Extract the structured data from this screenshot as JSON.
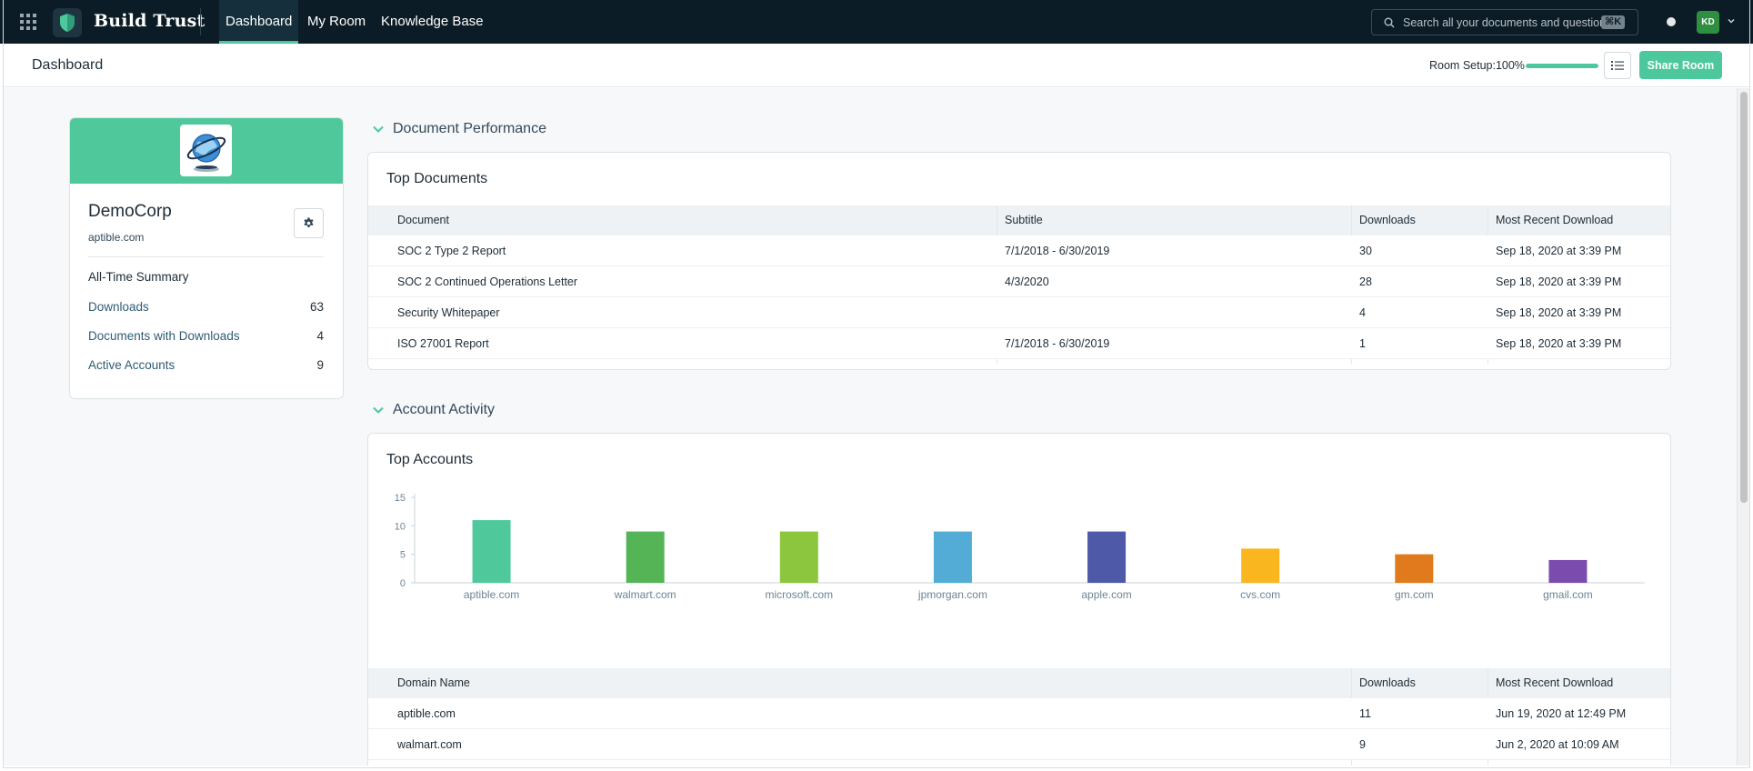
{
  "topnav": {
    "brand": "Build Trust",
    "tabs": [
      {
        "label": "Dashboard",
        "active": true
      },
      {
        "label": "My Room",
        "active": false
      },
      {
        "label": "Knowledge Base",
        "active": false
      }
    ],
    "search_placeholder": "Search all your documents and questions",
    "search_shortcut": "⌘K",
    "avatar_initials": "KD"
  },
  "subheader": {
    "title": "Dashboard",
    "room_setup_label": "Room Setup:100%",
    "room_setup_progress": 1.0,
    "share_button": "Share Room"
  },
  "company": {
    "name": "DemoCorp",
    "domain": "aptible.com",
    "summary_title": "All-Time Summary",
    "summary": [
      {
        "label": "Downloads",
        "value": "63"
      },
      {
        "label": "Documents with Downloads",
        "value": "4"
      },
      {
        "label": "Active Accounts",
        "value": "9"
      }
    ]
  },
  "document_performance": {
    "section_title": "Document Performance",
    "panel_title": "Top Documents",
    "columns": [
      "Document",
      "Subtitle",
      "Downloads",
      "Most Recent Download"
    ],
    "rows": [
      [
        "SOC 2 Type 2 Report",
        "7/1/2018 - 6/30/2019",
        "30",
        "Sep 18, 2020 at 3:39 PM"
      ],
      [
        "SOC 2 Continued Operations Letter",
        "4/3/2020",
        "28",
        "Sep 18, 2020 at 3:39 PM"
      ],
      [
        "Security Whitepaper",
        "",
        "4",
        "Sep 18, 2020 at 3:39 PM"
      ],
      [
        "ISO 27001 Report",
        "7/1/2018 - 6/30/2019",
        "1",
        "Sep 18, 2020 at 3:39 PM"
      ]
    ]
  },
  "account_activity": {
    "section_title": "Account Activity",
    "panel_title": "Top Accounts",
    "columns": [
      "Domain Name",
      "Downloads",
      "Most Recent Download"
    ],
    "rows": [
      [
        "aptible.com",
        "11",
        "Jun 19, 2020 at 12:49 PM"
      ],
      [
        "walmart.com",
        "9",
        "Jun 2, 2020 at 10:09 AM"
      ]
    ]
  },
  "chart_data": {
    "type": "bar",
    "title": "Top Accounts",
    "categories": [
      "aptible.com",
      "walmart.com",
      "microsoft.com",
      "jpmorgan.com",
      "apple.com",
      "cvs.com",
      "gm.com",
      "gmail.com"
    ],
    "values": [
      11,
      9,
      9,
      9,
      9,
      6,
      5,
      4
    ],
    "colors": [
      "#4fc99c",
      "#55b456",
      "#8cc63f",
      "#52acd5",
      "#4e5aa8",
      "#f9b61f",
      "#e07a1c",
      "#7b4cae"
    ],
    "ylim": [
      0,
      15
    ],
    "yticks": [
      0,
      5,
      10,
      15
    ],
    "grid": false,
    "legend": "none"
  },
  "colors": {
    "nav_bg": "#0c1c26",
    "accent": "#4cc89c",
    "page_bg": "#f6f8f9"
  }
}
